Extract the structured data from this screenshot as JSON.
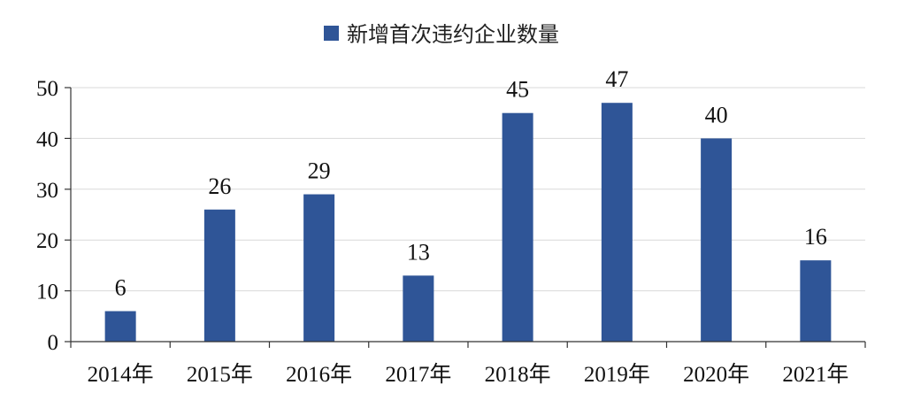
{
  "chart_data": {
    "type": "bar",
    "categories": [
      "2014年",
      "2015年",
      "2016年",
      "2017年",
      "2018年",
      "2019年",
      "2020年",
      "2021年"
    ],
    "series": [
      {
        "name": "新增首次违约企业数量",
        "values": [
          6,
          26,
          29,
          13,
          45,
          47,
          40,
          16
        ]
      }
    ],
    "ylim": [
      0,
      50
    ],
    "yticks": [
      0,
      10,
      20,
      30,
      40,
      50
    ],
    "grid": true,
    "legend": "top-center",
    "colors": {
      "bar": "#2f5597",
      "grid": "#d9d9d9",
      "axis": "#333333"
    }
  }
}
